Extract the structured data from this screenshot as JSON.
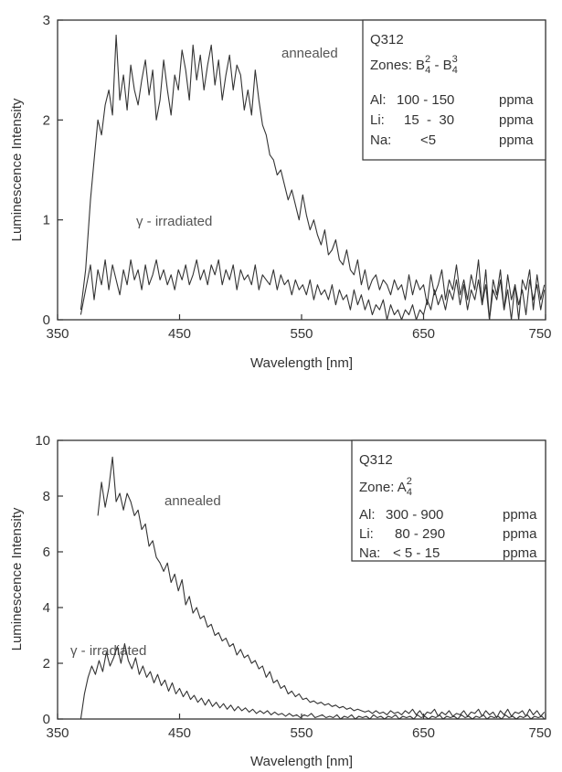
{
  "chart_data": [
    {
      "type": "line",
      "xlabel": "Wavelength [nm]",
      "ylabel": "Luminescence Intensity",
      "xlim": [
        350,
        750
      ],
      "ylim": [
        0,
        3
      ],
      "xticks": [
        "350",
        "450",
        "550",
        "650",
        "750"
      ],
      "yticks": [
        "0",
        "1",
        "2",
        "3"
      ],
      "legend_position": "top-right",
      "legend": {
        "sample": "Q312",
        "zone_prefix": "Zones: ",
        "zone_a": "B",
        "zone_a_sub": "4",
        "zone_a_sup": "2",
        "zone_sep": " - ",
        "zone_b": "B",
        "zone_b_sub": "4",
        "zone_b_sup": "3",
        "elements": [
          {
            "name": "Al:",
            "range": "100 - 150",
            "unit": "ppma"
          },
          {
            "name": "Li:",
            "range": "15  -  30",
            "unit": "ppma"
          },
          {
            "name": "Na:",
            "range": "<5",
            "unit": "ppma"
          }
        ]
      },
      "series": [
        {
          "name": "annealed",
          "x": [
            369,
            373,
            377,
            380,
            383,
            386,
            389,
            392,
            395,
            398,
            401,
            404,
            407,
            410,
            413,
            416,
            419,
            422,
            425,
            428,
            431,
            434,
            437,
            440,
            443,
            446,
            449,
            452,
            455,
            458,
            461,
            464,
            467,
            470,
            473,
            476,
            479,
            482,
            485,
            488,
            491,
            494,
            497,
            500,
            503,
            506,
            509,
            512,
            515,
            518,
            521,
            524,
            527,
            530,
            533,
            536,
            539,
            542,
            545,
            548,
            551,
            554,
            557,
            560,
            563,
            566,
            569,
            572,
            575,
            578,
            581,
            584,
            587,
            590,
            593,
            596,
            599,
            602,
            605,
            608,
            611,
            614,
            617,
            620,
            623,
            626,
            629,
            632,
            635,
            638,
            641,
            644,
            647,
            650,
            653,
            656,
            659,
            662,
            665,
            668,
            671,
            674,
            677,
            680,
            683,
            686,
            689,
            692,
            695,
            698,
            701,
            704,
            707,
            710,
            713,
            716,
            719,
            722,
            725,
            728,
            731,
            734,
            737,
            740,
            743,
            746,
            749
          ],
          "values": [
            0.1,
            0.5,
            1.2,
            1.6,
            2.0,
            1.85,
            2.15,
            2.3,
            2.05,
            2.85,
            2.2,
            2.45,
            2.1,
            2.55,
            2.3,
            2.15,
            2.4,
            2.6,
            2.25,
            2.5,
            2.0,
            2.2,
            2.6,
            2.3,
            2.05,
            2.45,
            2.3,
            2.7,
            2.5,
            2.2,
            2.75,
            2.4,
            2.65,
            2.3,
            2.55,
            2.75,
            2.35,
            2.6,
            2.2,
            2.45,
            2.65,
            2.3,
            2.55,
            2.45,
            2.1,
            2.3,
            2.05,
            2.5,
            2.2,
            1.95,
            1.85,
            1.65,
            1.6,
            1.45,
            1.5,
            1.35,
            1.2,
            1.3,
            1.15,
            1.0,
            1.25,
            1.05,
            0.9,
            1.0,
            0.85,
            0.75,
            0.9,
            0.65,
            0.7,
            0.8,
            0.6,
            0.55,
            0.7,
            0.5,
            0.45,
            0.6,
            0.35,
            0.5,
            0.3,
            0.4,
            0.45,
            0.3,
            0.4,
            0.35,
            0.25,
            0.4,
            0.3,
            0.35,
            0.2,
            0.45,
            0.25,
            0.4,
            0.3,
            0.35,
            0.15,
            0.45,
            0.25,
            0.35,
            0.5,
            0.2,
            0.4,
            0.3,
            0.55,
            0.25,
            0.4,
            0.2,
            0.45,
            0.3,
            0.6,
            0.15,
            0.5,
            0.0,
            0.4,
            0.25,
            0.5,
            0.1,
            0.45,
            0.2,
            0.35,
            0.0,
            0.4,
            0.3,
            0.5,
            0.1,
            0.45,
            0.2,
            0.35
          ]
        },
        {
          "name": "γ - irradiated",
          "x": [
            369,
            373,
            377,
            380,
            383,
            386,
            389,
            392,
            395,
            398,
            401,
            404,
            407,
            410,
            413,
            416,
            419,
            422,
            425,
            428,
            431,
            434,
            437,
            440,
            443,
            446,
            449,
            452,
            455,
            458,
            461,
            464,
            467,
            470,
            473,
            476,
            479,
            482,
            485,
            488,
            491,
            494,
            497,
            500,
            503,
            506,
            509,
            512,
            515,
            518,
            521,
            524,
            527,
            530,
            533,
            536,
            539,
            542,
            545,
            548,
            551,
            554,
            557,
            560,
            563,
            566,
            569,
            572,
            575,
            578,
            581,
            584,
            587,
            590,
            593,
            596,
            599,
            602,
            605,
            608,
            611,
            614,
            617,
            620,
            623,
            626,
            629,
            632,
            635,
            638,
            641,
            644,
            647,
            650,
            653,
            656,
            659,
            662,
            665,
            668,
            671,
            674,
            677,
            680,
            683,
            686,
            689,
            692,
            695,
            698,
            701,
            704,
            707,
            710,
            713,
            716,
            719,
            722,
            725,
            728,
            731,
            734,
            737,
            740,
            743,
            746,
            749
          ],
          "values": [
            0.05,
            0.3,
            0.55,
            0.2,
            0.5,
            0.35,
            0.6,
            0.3,
            0.55,
            0.4,
            0.25,
            0.5,
            0.35,
            0.6,
            0.4,
            0.5,
            0.3,
            0.55,
            0.35,
            0.45,
            0.6,
            0.4,
            0.5,
            0.35,
            0.45,
            0.3,
            0.5,
            0.4,
            0.55,
            0.35,
            0.45,
            0.6,
            0.4,
            0.5,
            0.35,
            0.55,
            0.45,
            0.6,
            0.35,
            0.5,
            0.4,
            0.55,
            0.3,
            0.5,
            0.4,
            0.45,
            0.35,
            0.55,
            0.3,
            0.45,
            0.4,
            0.35,
            0.5,
            0.3,
            0.45,
            0.35,
            0.4,
            0.25,
            0.4,
            0.3,
            0.35,
            0.25,
            0.4,
            0.2,
            0.35,
            0.25,
            0.3,
            0.2,
            0.35,
            0.15,
            0.3,
            0.2,
            0.25,
            0.1,
            0.3,
            0.15,
            0.25,
            0.1,
            0.2,
            0.05,
            0.15,
            0.1,
            0.2,
            0.0,
            0.15,
            0.05,
            0.1,
            0.0,
            0.1,
            0.05,
            0.15,
            0.0,
            0.1,
            0.05,
            0.2,
            0.1,
            0.3,
            0.15,
            0.25,
            0.1,
            0.3,
            0.2,
            0.4,
            0.15,
            0.35,
            0.1,
            0.3,
            0.2,
            0.4,
            0.15,
            0.35,
            0.0,
            0.3,
            0.2,
            0.4,
            0.1,
            0.3,
            0.0,
            0.35,
            0.15,
            0.3,
            0.05,
            0.4,
            0.2,
            0.35,
            0.1,
            0.3
          ]
        }
      ]
    },
    {
      "type": "line",
      "xlabel": "Wavelength [nm]",
      "ylabel": "Luminescence Intensity",
      "xlim": [
        350,
        750
      ],
      "ylim": [
        0,
        10
      ],
      "xticks": [
        "350",
        "450",
        "550",
        "650",
        "750"
      ],
      "yticks": [
        "0",
        "2",
        "4",
        "6",
        "8",
        "10"
      ],
      "legend_position": "top-right",
      "legend": {
        "sample": "Q312",
        "zone_prefix": "Zone: ",
        "zone_a": "A",
        "zone_a_sub": "4",
        "zone_a_sup": "2",
        "elements": [
          {
            "name": "Al:",
            "range": "300 - 900",
            "unit": "ppma"
          },
          {
            "name": "Li:",
            "range": "80 - 290",
            "unit": "ppma"
          },
          {
            "name": "Na:",
            "range": "< 5 - 15",
            "unit": "ppma"
          }
        ]
      },
      "series": [
        {
          "name": "annealed",
          "x": [
            383,
            386,
            389,
            392,
            395,
            398,
            401,
            404,
            407,
            410,
            413,
            416,
            419,
            422,
            425,
            428,
            431,
            434,
            437,
            440,
            443,
            446,
            449,
            452,
            455,
            458,
            461,
            464,
            467,
            470,
            473,
            476,
            479,
            482,
            485,
            488,
            491,
            494,
            497,
            500,
            503,
            506,
            509,
            512,
            515,
            518,
            521,
            524,
            527,
            530,
            533,
            536,
            539,
            542,
            545,
            548,
            551,
            554,
            557,
            560,
            563,
            566,
            569,
            572,
            575,
            578,
            581,
            584,
            587,
            590,
            593,
            596,
            599,
            602,
            605,
            608,
            611,
            614,
            617,
            620,
            623,
            626,
            629,
            632,
            635,
            638,
            641,
            644,
            647,
            650,
            653,
            656,
            659,
            662,
            665,
            668,
            671,
            674,
            677,
            680,
            683,
            686,
            689,
            692,
            695,
            698,
            701,
            704,
            707,
            710,
            713,
            716,
            719,
            722,
            725,
            728,
            731,
            734,
            737,
            740,
            743,
            746,
            749
          ],
          "values": [
            7.3,
            8.5,
            7.6,
            8.3,
            9.4,
            7.8,
            8.1,
            7.5,
            8.1,
            7.8,
            7.3,
            7.5,
            6.8,
            7.0,
            6.2,
            6.4,
            5.8,
            5.6,
            5.3,
            5.6,
            4.9,
            5.2,
            4.6,
            5.0,
            4.1,
            4.4,
            3.8,
            4.0,
            3.6,
            3.7,
            3.3,
            3.4,
            3.0,
            3.1,
            2.8,
            2.9,
            2.6,
            2.7,
            2.3,
            2.5,
            2.2,
            2.3,
            2.0,
            2.1,
            1.8,
            1.9,
            1.5,
            1.7,
            1.3,
            1.4,
            1.1,
            1.2,
            0.9,
            1.0,
            0.8,
            0.9,
            0.7,
            0.75,
            0.6,
            0.65,
            0.55,
            0.6,
            0.5,
            0.55,
            0.45,
            0.5,
            0.4,
            0.45,
            0.35,
            0.4,
            0.3,
            0.35,
            0.3,
            0.25,
            0.3,
            0.2,
            0.3,
            0.2,
            0.25,
            0.15,
            0.3,
            0.2,
            0.25,
            0.15,
            0.3,
            0.2,
            0.35,
            0.15,
            0.3,
            0.1,
            0.25,
            0.2,
            0.35,
            0.1,
            0.25,
            0.15,
            0.3,
            0.1,
            0.2,
            0.15,
            0.3,
            0.1,
            0.25,
            0.2,
            0.35,
            0.1,
            0.3,
            0.15,
            0.25,
            0.05,
            0.3,
            0.15,
            0.35,
            0.1,
            0.25,
            0.2,
            0.3,
            0.1,
            0.35,
            0.15,
            0.3,
            0.1,
            0.25
          ]
        },
        {
          "name": "γ - irradiated",
          "x": [
            369,
            372,
            375,
            378,
            381,
            384,
            387,
            390,
            393,
            396,
            399,
            402,
            405,
            408,
            411,
            414,
            417,
            420,
            423,
            426,
            429,
            432,
            435,
            438,
            441,
            444,
            447,
            450,
            453,
            456,
            459,
            462,
            465,
            468,
            471,
            474,
            477,
            480,
            483,
            486,
            489,
            492,
            495,
            498,
            501,
            504,
            507,
            510,
            513,
            516,
            519,
            522,
            525,
            528,
            531,
            534,
            537,
            540,
            543,
            546,
            549,
            552,
            555,
            558,
            561,
            564,
            567,
            570,
            573,
            576,
            579,
            582,
            585,
            588,
            591,
            594,
            597,
            600,
            603,
            606,
            609,
            612,
            615,
            618,
            621,
            624,
            627,
            630,
            633,
            636,
            639,
            642,
            645,
            648,
            651,
            654,
            657,
            660,
            663,
            666,
            669,
            672,
            675,
            678,
            681,
            684,
            687,
            690,
            693,
            696,
            699,
            702,
            705,
            708,
            711,
            714,
            717,
            720,
            723,
            726,
            729,
            732,
            735,
            738,
            741,
            744,
            747,
            749
          ],
          "values": [
            0.0,
            0.9,
            1.5,
            1.9,
            1.6,
            2.1,
            1.7,
            2.4,
            1.9,
            2.2,
            2.6,
            2.0,
            2.7,
            2.1,
            1.8,
            2.2,
            1.6,
            1.9,
            1.5,
            1.7,
            1.3,
            1.6,
            1.2,
            1.4,
            1.0,
            1.3,
            0.9,
            1.1,
            0.8,
            1.0,
            0.7,
            0.85,
            0.6,
            0.75,
            0.5,
            0.7,
            0.45,
            0.6,
            0.4,
            0.55,
            0.35,
            0.5,
            0.3,
            0.45,
            0.3,
            0.4,
            0.25,
            0.35,
            0.2,
            0.3,
            0.2,
            0.3,
            0.15,
            0.25,
            0.15,
            0.2,
            0.1,
            0.2,
            0.1,
            0.15,
            0.05,
            0.15,
            0.1,
            0.2,
            0.05,
            0.1,
            0.15,
            0.05,
            0.1,
            0.05,
            0.15,
            0.0,
            0.1,
            0.05,
            0.15,
            0.0,
            0.1,
            0.05,
            0.1,
            0.0,
            0.15,
            0.05,
            0.1,
            0.0,
            0.1,
            0.05,
            0.15,
            0.0,
            0.1,
            0.05,
            0.1,
            0.0,
            0.15,
            0.05,
            0.1,
            0.0,
            0.1,
            0.05,
            0.15,
            0.0,
            0.1,
            0.05,
            0.1,
            0.0,
            0.15,
            0.05,
            0.1,
            0.0,
            0.1,
            0.05,
            0.15,
            0.0,
            0.1,
            0.05,
            0.1,
            0.0,
            0.15,
            0.05,
            0.1,
            0.0,
            0.1,
            0.05,
            0.15,
            0.0,
            0.1,
            0.05,
            0.1,
            0.0
          ]
        }
      ]
    }
  ]
}
